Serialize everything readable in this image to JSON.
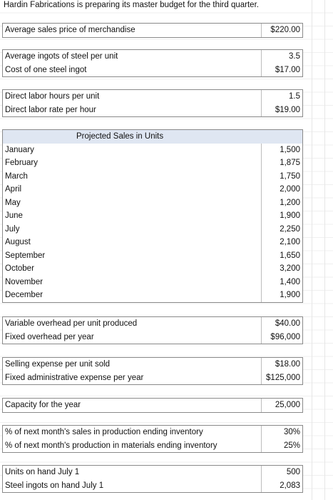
{
  "title": "Hardin Fabrications is preparing its master budget for the third quarter.",
  "price": {
    "label": "Average sales price of merchandise",
    "value": "$220.00"
  },
  "steel": {
    "ingots_label": "Average ingots of steel per unit",
    "ingots_value": "3.5",
    "cost_label": "Cost of one steel ingot",
    "cost_value": "$17.00"
  },
  "labor": {
    "hours_label": "Direct labor hours per unit",
    "hours_value": "1.5",
    "rate_label": "Direct labor rate per hour",
    "rate_value": "$19.00"
  },
  "sales": {
    "header": "Projected Sales in Units",
    "months": [
      {
        "month": "January",
        "units": "1,500"
      },
      {
        "month": "February",
        "units": "1,875"
      },
      {
        "month": "March",
        "units": "1,750"
      },
      {
        "month": "April",
        "units": "2,000"
      },
      {
        "month": "May",
        "units": "1,200"
      },
      {
        "month": "June",
        "units": "1,900"
      },
      {
        "month": "July",
        "units": "2,250"
      },
      {
        "month": "August",
        "units": "2,100"
      },
      {
        "month": "September",
        "units": "1,650"
      },
      {
        "month": "October",
        "units": "3,200"
      },
      {
        "month": "November",
        "units": "1,400"
      },
      {
        "month": "December",
        "units": "1,900"
      }
    ]
  },
  "overhead": {
    "variable_label": "Variable overhead per unit produced",
    "variable_value": "$40.00",
    "fixed_label": "Fixed overhead per year",
    "fixed_value": "$96,000"
  },
  "selling": {
    "selling_label": "Selling expense per unit sold",
    "selling_value": "$18.00",
    "admin_label": "Fixed administrative expense per year",
    "admin_value": "$125,000"
  },
  "capacity": {
    "label": "Capacity for the year",
    "value": "25,000"
  },
  "inventory": {
    "production_label": "% of next month's sales in production ending inventory",
    "production_value": "30%",
    "materials_label": "% of next month's production in materials ending inventory",
    "materials_value": "25%"
  },
  "onhand": {
    "units_label": "Units on hand July 1",
    "units_value": "500",
    "steel_label": "Steel ingots on hand July 1",
    "steel_value": "2,083"
  }
}
